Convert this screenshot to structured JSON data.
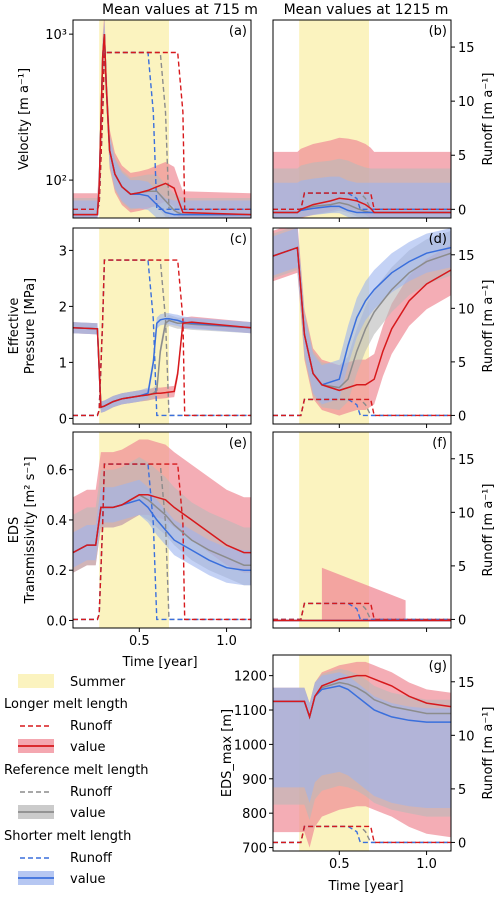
{
  "colors": {
    "summer": "#fbf3bf",
    "longer": "#d7191c",
    "reference": "#8c8c8c",
    "shorter": "#3a6fdc",
    "longer_band": "#f08a96",
    "reference_band": "#b9b9b9",
    "shorter_band": "#9db4ee",
    "purple_band": "#9a5a86"
  },
  "columns": {
    "left_title": "Mean values at 715 m",
    "right_title": "Mean values at 1215 m"
  },
  "chart_data": [
    {
      "id": "a",
      "type": "line",
      "panel_label": "(a)",
      "ylabel_lines": [
        "Velocity [m a⁻¹]"
      ],
      "yscale": "log",
      "ylim": [
        55,
        1250
      ],
      "yticks": [
        {
          "value": 100,
          "label": "10²"
        },
        {
          "value": 1000,
          "label": "10³"
        }
      ],
      "xlim": [
        0.12,
        1.14
      ],
      "summer": [
        0.27,
        0.67
      ],
      "runoff_ylim": [
        -0.8,
        17.5
      ],
      "x": [
        0.12,
        0.26,
        0.27,
        0.29,
        0.3,
        0.31,
        0.33,
        0.36,
        0.4,
        0.45,
        0.5,
        0.55,
        0.6,
        0.65,
        0.7,
        0.72,
        0.75,
        1.14
      ],
      "series": [
        {
          "name": "longer",
          "values": [
            58,
            58,
            90,
            700,
            1000,
            450,
            160,
            110,
            90,
            80,
            82,
            85,
            90,
            95,
            88,
            75,
            60,
            58
          ],
          "band_lo": 0.75,
          "band_hi": 1.4
        },
        {
          "name": "reference",
          "values": [
            58,
            58,
            90,
            700,
            1000,
            450,
            160,
            110,
            90,
            80,
            82,
            84,
            84,
            72,
            62,
            60,
            58,
            58
          ],
          "band_lo": 0.78,
          "band_hi": 1.3
        },
        {
          "name": "shorter",
          "values": [
            58,
            58,
            90,
            700,
            1000,
            450,
            160,
            110,
            90,
            80,
            80,
            78,
            68,
            60,
            58,
            58,
            58,
            58
          ],
          "band_lo": 0.8,
          "band_hi": 1.25
        }
      ]
    },
    {
      "id": "b",
      "type": "line",
      "panel_label": "(b)",
      "right_label": "Runoff [m a⁻¹]",
      "yscale": "log",
      "ylim": [
        55,
        1250
      ],
      "xlim": [
        0.12,
        1.14
      ],
      "summer": [
        0.27,
        0.67
      ],
      "runoff_ylim": [
        -0.8,
        17.5
      ],
      "right_ticks": [
        0,
        5,
        10,
        15
      ],
      "x": [
        0.12,
        0.26,
        0.28,
        0.35,
        0.45,
        0.5,
        0.55,
        0.6,
        0.65,
        0.68,
        0.7,
        1.14
      ],
      "series": [
        {
          "name": "longer",
          "values": [
            60,
            60,
            63,
            68,
            72,
            75,
            74,
            72,
            68,
            64,
            60,
            60
          ],
          "band_lo": 0.85,
          "band_hi": 2.6
        },
        {
          "name": "reference",
          "values": [
            60,
            60,
            63,
            66,
            68,
            70,
            68,
            64,
            61,
            60,
            60,
            60
          ],
          "band_lo": 0.88,
          "band_hi": 2.0
        },
        {
          "name": "shorter",
          "values": [
            60,
            60,
            62,
            64,
            66,
            66,
            62,
            60,
            60,
            60,
            60,
            60
          ],
          "band_lo": 0.9,
          "band_hi": 1.6
        }
      ]
    },
    {
      "id": "c",
      "type": "line",
      "panel_label": "(c)",
      "ylabel_lines": [
        "Effective",
        "Pressure [MPa]"
      ],
      "ylim": [
        -0.1,
        3.4
      ],
      "yticks": [
        {
          "value": 0,
          "label": "0"
        },
        {
          "value": 1,
          "label": "1"
        },
        {
          "value": 2,
          "label": "2"
        },
        {
          "value": 3,
          "label": "3"
        }
      ],
      "xlim": [
        0.12,
        1.14
      ],
      "summer": [
        0.27,
        0.67
      ],
      "runoff_ylim": [
        -0.8,
        17.5
      ],
      "x": [
        0.12,
        0.26,
        0.28,
        0.3,
        0.35,
        0.4,
        0.5,
        0.55,
        0.58,
        0.6,
        0.62,
        0.65,
        0.67,
        0.7,
        0.72,
        0.75,
        0.8,
        1.14
      ],
      "series": [
        {
          "name": "longer",
          "values": [
            1.62,
            1.6,
            0.2,
            0.22,
            0.3,
            0.35,
            0.4,
            0.42,
            0.44,
            0.45,
            0.45,
            0.46,
            0.47,
            0.48,
            0.8,
            1.7,
            1.72,
            1.62
          ],
          "band_abs": 0.1
        },
        {
          "name": "reference",
          "values": [
            1.62,
            1.6,
            0.2,
            0.22,
            0.3,
            0.35,
            0.4,
            0.42,
            0.45,
            0.5,
            1.2,
            1.7,
            1.75,
            1.72,
            1.7,
            1.7,
            1.68,
            1.62
          ],
          "band_abs": 0.1
        },
        {
          "name": "shorter",
          "values": [
            1.62,
            1.6,
            0.2,
            0.22,
            0.3,
            0.35,
            0.4,
            0.45,
            1.0,
            1.7,
            1.76,
            1.78,
            1.78,
            1.76,
            1.75,
            1.72,
            1.7,
            1.62
          ],
          "band_abs": 0.1
        }
      ]
    },
    {
      "id": "d",
      "type": "line",
      "panel_label": "(d)",
      "right_label": "Runoff [m a⁻¹]",
      "ylim": [
        -0.1,
        3.4
      ],
      "xlim": [
        0.12,
        1.14
      ],
      "summer": [
        0.27,
        0.67
      ],
      "runoff_ylim": [
        -0.8,
        17.5
      ],
      "right_ticks": [
        0,
        5,
        10,
        15
      ],
      "x": [
        0.12,
        0.26,
        0.28,
        0.3,
        0.35,
        0.4,
        0.5,
        0.55,
        0.6,
        0.65,
        0.7,
        0.75,
        0.8,
        0.9,
        1.0,
        1.14
      ],
      "series": [
        {
          "name": "longer",
          "values": [
            2.9,
            3.05,
            2.3,
            1.5,
            0.8,
            0.6,
            0.5,
            0.55,
            0.6,
            0.6,
            0.7,
            1.2,
            1.6,
            2.1,
            2.4,
            2.65
          ],
          "band_abs": 0.45
        },
        {
          "name": "reference",
          "values": [
            2.9,
            3.05,
            2.3,
            1.5,
            0.8,
            0.6,
            0.55,
            0.7,
            1.2,
            1.6,
            1.9,
            2.1,
            2.3,
            2.6,
            2.8,
            2.95
          ],
          "band_abs": 0.4
        },
        {
          "name": "shorter",
          "values": [
            2.9,
            3.05,
            2.3,
            1.5,
            0.8,
            0.6,
            0.7,
            1.3,
            1.8,
            2.1,
            2.3,
            2.45,
            2.6,
            2.8,
            2.95,
            3.05
          ],
          "band_abs": 0.35
        }
      ]
    },
    {
      "id": "e",
      "type": "line",
      "panel_label": "(e)",
      "ylabel_lines": [
        "EDS",
        "Transmissivity [m² s⁻¹]"
      ],
      "ylim": [
        -0.03,
        0.75
      ],
      "yticks": [
        {
          "value": 0.0,
          "label": "0.0"
        },
        {
          "value": 0.2,
          "label": "0.2"
        },
        {
          "value": 0.4,
          "label": "0.4"
        },
        {
          "value": 0.6,
          "label": "0.6"
        }
      ],
      "xlim": [
        0.12,
        1.14
      ],
      "summer": [
        0.27,
        0.67
      ],
      "runoff_ylim": [
        -0.8,
        17.5
      ],
      "x": [
        0.12,
        0.2,
        0.25,
        0.28,
        0.3,
        0.35,
        0.4,
        0.45,
        0.5,
        0.55,
        0.6,
        0.65,
        0.7,
        0.8,
        0.9,
        1.0,
        1.1,
        1.14
      ],
      "series": [
        {
          "name": "longer",
          "values": [
            0.27,
            0.3,
            0.3,
            0.45,
            0.45,
            0.45,
            0.46,
            0.48,
            0.5,
            0.5,
            0.49,
            0.48,
            0.45,
            0.4,
            0.35,
            0.3,
            0.27,
            0.27
          ],
          "band_lo_abs": 0.08,
          "band_hi_abs": 0.22
        },
        {
          "name": "reference",
          "values": [
            0.27,
            0.3,
            0.3,
            0.45,
            0.45,
            0.45,
            0.46,
            0.48,
            0.5,
            0.48,
            0.45,
            0.42,
            0.38,
            0.32,
            0.28,
            0.25,
            0.22,
            0.22
          ],
          "band_lo_abs": 0.08,
          "band_hi_abs": 0.15
        },
        {
          "name": "shorter",
          "values": [
            0.27,
            0.3,
            0.3,
            0.45,
            0.45,
            0.45,
            0.46,
            0.47,
            0.48,
            0.45,
            0.4,
            0.36,
            0.32,
            0.28,
            0.24,
            0.21,
            0.2,
            0.2
          ],
          "band_lo_abs": 0.06,
          "band_hi_abs": 0.08
        }
      ]
    },
    {
      "id": "f",
      "type": "line",
      "panel_label": "(f)",
      "right_label": "Runoff [m a⁻¹]",
      "ylim": [
        -0.03,
        0.75
      ],
      "xlim": [
        0.12,
        1.14
      ],
      "summer": [
        0.27,
        0.67
      ],
      "runoff_ylim": [
        -0.8,
        17.5
      ],
      "right_ticks": [
        0,
        5,
        10,
        15
      ],
      "x": [
        0.12,
        0.4,
        0.41,
        1.14
      ],
      "series": [
        {
          "name": "longer",
          "values": [
            0,
            0,
            0,
            0
          ],
          "band_shape": "wedge"
        },
        {
          "name": "reference",
          "values": [
            0,
            0,
            0,
            0
          ]
        },
        {
          "name": "shorter",
          "values": [
            0,
            0,
            0,
            0
          ]
        }
      ]
    },
    {
      "id": "g",
      "type": "line",
      "panel_label": "(g)",
      "ylabel_lines": [
        "EDS_max [m]"
      ],
      "right_label": "Runoff [m a⁻¹]",
      "ylim": [
        690,
        1260
      ],
      "yticks": [
        {
          "value": 700,
          "label": "700"
        },
        {
          "value": 800,
          "label": "800"
        },
        {
          "value": 900,
          "label": "900"
        },
        {
          "value": 1000,
          "label": "1000"
        },
        {
          "value": 1100,
          "label": "1100"
        },
        {
          "value": 1200,
          "label": "1200"
        }
      ],
      "xlim": [
        0.12,
        1.14
      ],
      "summer": [
        0.27,
        0.67
      ],
      "runoff_ylim": [
        -0.8,
        17.5
      ],
      "right_ticks": [
        0,
        5,
        10,
        15
      ],
      "x": [
        0.12,
        0.3,
        0.33,
        0.36,
        0.4,
        0.5,
        0.55,
        0.6,
        0.65,
        0.7,
        0.75,
        0.8,
        0.9,
        1.0,
        1.14
      ],
      "series": [
        {
          "name": "longer",
          "values": [
            1125,
            1125,
            1080,
            1140,
            1170,
            1190,
            1195,
            1200,
            1200,
            1190,
            1180,
            1170,
            1140,
            1120,
            1110
          ],
          "band_lo_abs": 380,
          "band_hi_abs": 40
        },
        {
          "name": "reference",
          "values": [
            1125,
            1125,
            1080,
            1140,
            1165,
            1180,
            1175,
            1165,
            1150,
            1130,
            1120,
            1110,
            1100,
            1090,
            1090
          ],
          "band_lo_abs": 300,
          "band_hi_abs": 40
        },
        {
          "name": "shorter",
          "values": [
            1125,
            1125,
            1080,
            1140,
            1160,
            1170,
            1160,
            1140,
            1120,
            1100,
            1090,
            1080,
            1070,
            1065,
            1065
          ],
          "band_lo_abs": 250,
          "band_hi_abs": 40
        }
      ]
    }
  ],
  "runoff": {
    "left_panels": {
      "x": [
        0.12,
        0.26,
        0.27,
        0.29,
        0.3,
        0.44,
        0.5,
        0.55,
        0.58,
        0.6,
        0.62,
        0.65,
        0.67,
        0.7,
        0.72,
        0.75,
        0.76,
        1.14
      ],
      "longer": [
        0,
        0,
        0.5,
        9,
        14.5,
        14.5,
        14.5,
        14.5,
        14.5,
        14.5,
        14.5,
        14.5,
        14.5,
        14.5,
        14.5,
        9,
        0,
        0
      ],
      "reference": [
        0,
        0,
        0.5,
        9,
        14.5,
        14.5,
        14.5,
        14.5,
        14.5,
        14.5,
        14.5,
        9,
        0,
        0,
        0,
        0,
        0,
        0
      ],
      "shorter": [
        0,
        0,
        0.5,
        9,
        14.5,
        14.5,
        14.5,
        14.5,
        9,
        0,
        0,
        0,
        0,
        0,
        0,
        0,
        0,
        0
      ]
    },
    "right_panels": {
      "x": [
        0.12,
        0.28,
        0.3,
        0.55,
        0.6,
        0.62,
        0.65,
        0.68,
        0.7,
        1.14
      ],
      "longer": [
        0,
        0,
        1.5,
        1.5,
        1.5,
        1.5,
        1.5,
        1.5,
        0,
        0
      ],
      "reference": [
        0,
        0,
        1.5,
        1.5,
        1.5,
        1.5,
        1,
        0,
        0,
        0
      ],
      "shorter": [
        0,
        0,
        1.5,
        1.5,
        1,
        0,
        0,
        0,
        0,
        0
      ]
    }
  },
  "axes": {
    "xlabel": "Time [year]",
    "xticks": [
      {
        "value": 0.5,
        "label": "0.5"
      },
      {
        "value": 1.0,
        "label": "1.0"
      }
    ]
  },
  "legend": {
    "summer": "Summer",
    "longer_heading": "Longer melt length",
    "reference_heading": "Reference melt length",
    "shorter_heading": "Shorter melt length",
    "runoff": "Runoff",
    "value": "value"
  }
}
